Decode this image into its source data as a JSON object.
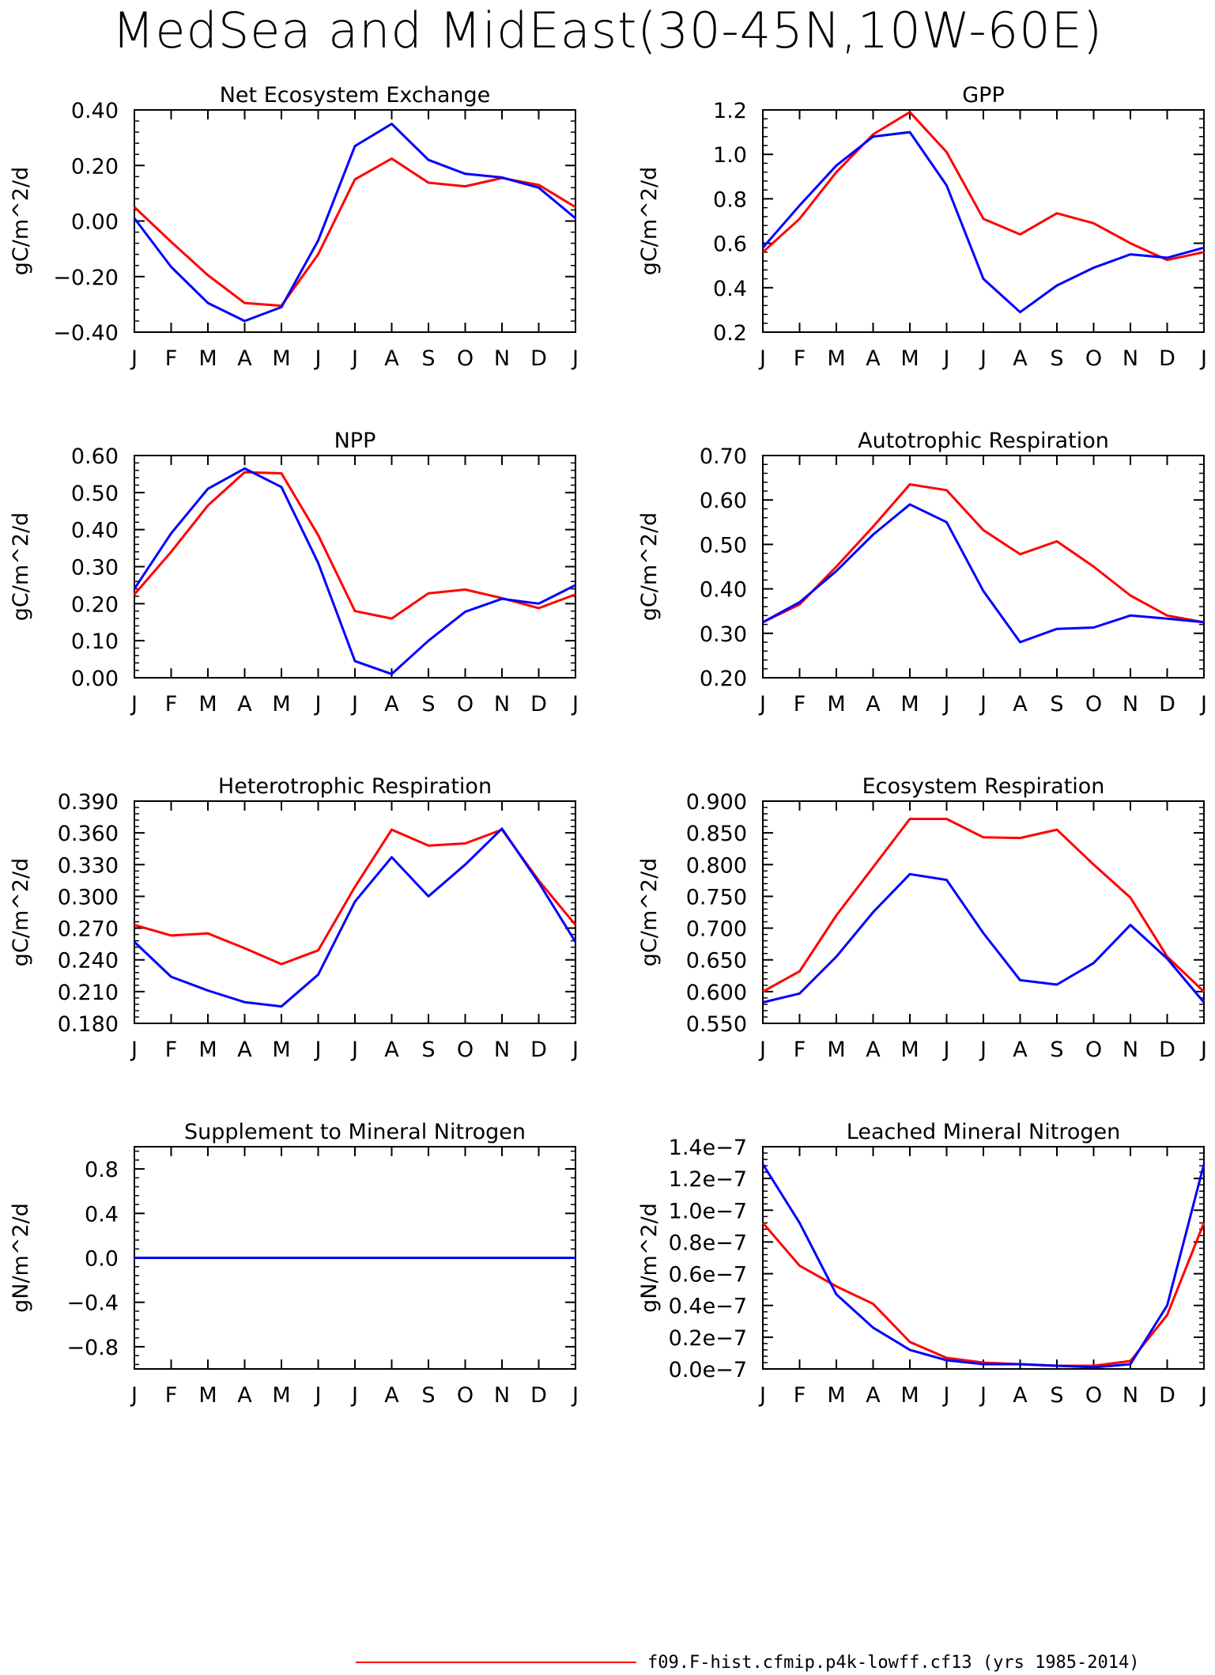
{
  "page": {
    "title": "MedSea and MidEast(30-45N,10W-60E)"
  },
  "months": [
    "J",
    "F",
    "M",
    "A",
    "M",
    "J",
    "J",
    "A",
    "S",
    "O",
    "N",
    "D",
    "J"
  ],
  "legend": {
    "label": "f09.F-hist.cfmip.p4k-lowff.cf13 (yrs 1985-2014)",
    "color": "#ff0000"
  },
  "colors": {
    "series_red": "#ff0000",
    "series_blue": "#0000ff",
    "axes": "#000000"
  },
  "chart_data": [
    {
      "type": "line",
      "title": "Net Ecosystem Exchange",
      "ylabel": "gC/m^2/d",
      "ylim": [
        -0.4,
        0.4
      ],
      "yticks": [
        -0.4,
        -0.2,
        0.0,
        0.2,
        0.4
      ],
      "yticklabels": [
        "-0.40",
        "-0.20",
        "0.00",
        "0.20",
        "0.40"
      ],
      "series": [
        {
          "color": "#ff0000",
          "values": [
            0.05,
            -0.075,
            -0.195,
            -0.295,
            -0.305,
            -0.12,
            0.15,
            0.225,
            0.138,
            0.125,
            0.155,
            0.13,
            0.05
          ]
        },
        {
          "color": "#0000ff",
          "values": [
            0.01,
            -0.165,
            -0.295,
            -0.36,
            -0.31,
            -0.07,
            0.27,
            0.35,
            0.22,
            0.17,
            0.157,
            0.12,
            0.01
          ]
        }
      ]
    },
    {
      "type": "line",
      "title": "GPP",
      "ylabel": "gC/m^2/d",
      "ylim": [
        0.2,
        1.2
      ],
      "yticks": [
        0.2,
        0.4,
        0.6,
        0.8,
        1.0,
        1.2
      ],
      "yticklabels": [
        "0.2",
        "0.4",
        "0.6",
        "0.8",
        "1.0",
        "1.2"
      ],
      "series": [
        {
          "color": "#ff0000",
          "values": [
            0.56,
            0.71,
            0.92,
            1.09,
            1.19,
            1.01,
            0.71,
            0.64,
            0.735,
            0.69,
            0.6,
            0.525,
            0.56
          ]
        },
        {
          "color": "#0000ff",
          "values": [
            0.58,
            0.77,
            0.95,
            1.08,
            1.1,
            0.86,
            0.44,
            0.29,
            0.41,
            0.49,
            0.55,
            0.535,
            0.58
          ]
        }
      ]
    },
    {
      "type": "line",
      "title": "NPP",
      "ylabel": "gC/m^2/d",
      "ylim": [
        0.0,
        0.6
      ],
      "yticks": [
        0.0,
        0.1,
        0.2,
        0.3,
        0.4,
        0.5,
        0.6
      ],
      "yticklabels": [
        "0.00",
        "0.10",
        "0.20",
        "0.30",
        "0.40",
        "0.50",
        "0.60"
      ],
      "series": [
        {
          "color": "#ff0000",
          "values": [
            0.225,
            0.34,
            0.465,
            0.555,
            0.552,
            0.385,
            0.18,
            0.16,
            0.228,
            0.238,
            0.215,
            0.188,
            0.225
          ]
        },
        {
          "color": "#0000ff",
          "values": [
            0.24,
            0.39,
            0.51,
            0.565,
            0.515,
            0.31,
            0.045,
            0.01,
            0.1,
            0.178,
            0.213,
            0.2,
            0.25
          ]
        }
      ]
    },
    {
      "type": "line",
      "title": "Autotrophic Respiration",
      "ylabel": "gC/m^2/d",
      "ylim": [
        0.2,
        0.7
      ],
      "yticks": [
        0.2,
        0.3,
        0.4,
        0.5,
        0.6,
        0.7
      ],
      "yticklabels": [
        "0.20",
        "0.30",
        "0.40",
        "0.50",
        "0.60",
        "0.70"
      ],
      "series": [
        {
          "color": "#ff0000",
          "values": [
            0.325,
            0.365,
            0.45,
            0.54,
            0.635,
            0.622,
            0.532,
            0.478,
            0.507,
            0.45,
            0.385,
            0.34,
            0.325
          ]
        },
        {
          "color": "#0000ff",
          "values": [
            0.325,
            0.37,
            0.44,
            0.522,
            0.59,
            0.55,
            0.395,
            0.28,
            0.31,
            0.313,
            0.34,
            0.333,
            0.325
          ]
        }
      ]
    },
    {
      "type": "line",
      "title": "Heterotrophic Respiration",
      "ylabel": "gC/m^2/d",
      "ylim": [
        0.18,
        0.39
      ],
      "yticks": [
        0.18,
        0.21,
        0.24,
        0.27,
        0.3,
        0.33,
        0.36,
        0.39
      ],
      "yticklabels": [
        "0.180",
        "0.210",
        "0.240",
        "0.270",
        "0.300",
        "0.330",
        "0.360",
        "0.390"
      ],
      "series": [
        {
          "color": "#ff0000",
          "values": [
            0.273,
            0.263,
            0.265,
            0.251,
            0.236,
            0.249,
            0.309,
            0.363,
            0.348,
            0.35,
            0.363,
            0.315,
            0.273
          ]
        },
        {
          "color": "#0000ff",
          "values": [
            0.257,
            0.224,
            0.211,
            0.2,
            0.196,
            0.226,
            0.295,
            0.337,
            0.3,
            0.33,
            0.364,
            0.313,
            0.257
          ]
        }
      ]
    },
    {
      "type": "line",
      "title": "Ecosystem Respiration",
      "ylabel": "gC/m^2/d",
      "ylim": [
        0.55,
        0.9
      ],
      "yticks": [
        0.55,
        0.6,
        0.65,
        0.7,
        0.75,
        0.8,
        0.85,
        0.9
      ],
      "yticklabels": [
        "0.550",
        "0.600",
        "0.650",
        "0.700",
        "0.750",
        "0.800",
        "0.850",
        "0.900"
      ],
      "series": [
        {
          "color": "#ff0000",
          "values": [
            0.6,
            0.632,
            0.72,
            0.796,
            0.872,
            0.872,
            0.843,
            0.842,
            0.855,
            0.8,
            0.748,
            0.655,
            0.6
          ]
        },
        {
          "color": "#0000ff",
          "values": [
            0.583,
            0.597,
            0.655,
            0.725,
            0.785,
            0.776,
            0.692,
            0.618,
            0.611,
            0.645,
            0.705,
            0.652,
            0.583
          ]
        }
      ]
    },
    {
      "type": "line",
      "title": "Supplement to Mineral Nitrogen",
      "ylabel": "gN/m^2/d",
      "ylim": [
        -1.0,
        1.0
      ],
      "yticks": [
        -0.8,
        -0.4,
        0.0,
        0.4,
        0.8
      ],
      "yticklabels": [
        "-0.8",
        "-0.4",
        "0.0",
        "0.4",
        "0.8"
      ],
      "series": [
        {
          "color": "#ff0000",
          "values": [
            0,
            0,
            0,
            0,
            0,
            0,
            0,
            0,
            0,
            0,
            0,
            0,
            0
          ]
        },
        {
          "color": "#0000ff",
          "values": [
            0,
            0,
            0,
            0,
            0,
            0,
            0,
            0,
            0,
            0,
            0,
            0,
            0
          ]
        }
      ]
    },
    {
      "type": "line",
      "title": "Leached Mineral Nitrogen",
      "ylabel": "gN/m^2/d",
      "ylim": [
        0.0,
        1.4e-07
      ],
      "yticks": [
        0.0,
        2e-08,
        4e-08,
        6e-08,
        8e-08,
        1e-07,
        1.2e-07,
        1.4e-07
      ],
      "yticklabels": [
        "0.0e-7",
        "0.2e-7",
        "0.4e-7",
        "0.6e-7",
        "0.8e-7",
        "1.0e-7",
        "1.2e-7",
        "1.4e-7"
      ],
      "series": [
        {
          "color": "#ff0000",
          "values": [
            9.2e-08,
            6.5e-08,
            5.2e-08,
            4.1e-08,
            1.7e-08,
            7e-09,
            4e-09,
            3e-09,
            2e-09,
            2e-09,
            5e-09,
            3.4e-08,
            9.2e-08
          ]
        },
        {
          "color": "#0000ff",
          "values": [
            1.29e-07,
            9.2e-08,
            4.7e-08,
            2.6e-08,
            1.2e-08,
            5.5e-09,
            3e-09,
            3e-09,
            2e-09,
            1e-09,
            3e-09,
            4e-08,
            1.29e-07
          ]
        }
      ]
    }
  ]
}
